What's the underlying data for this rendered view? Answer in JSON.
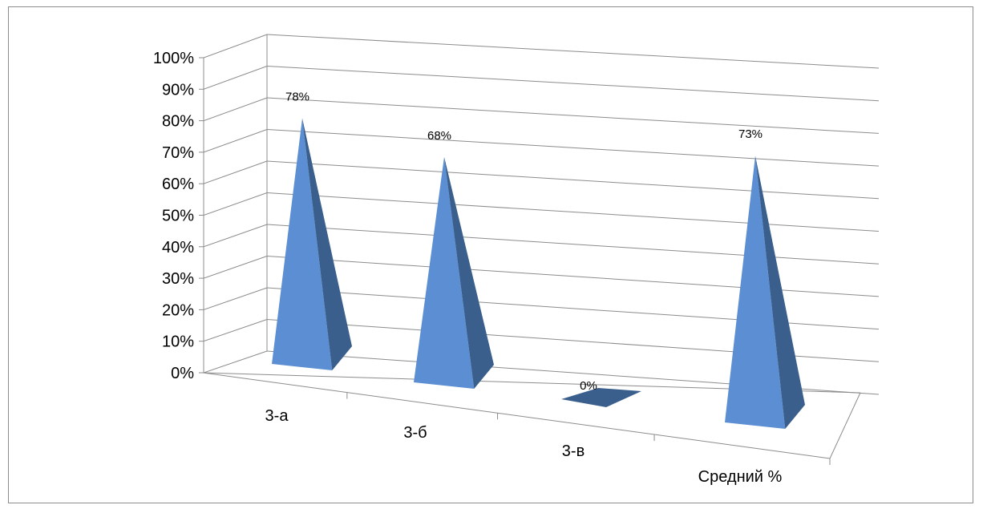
{
  "chart_data": {
    "type": "bar",
    "subtype": "3d-pyramid",
    "title": "",
    "xlabel": "",
    "ylabel": "",
    "categories": [
      "3-а",
      "3-б",
      "3-в",
      "Средний %"
    ],
    "values": [
      0.78,
      0.68,
      0.0,
      0.73
    ],
    "data_labels": [
      "78%",
      "68%",
      "0%",
      "73%"
    ],
    "ylim": [
      0,
      1
    ],
    "y_ticks": [
      "0%",
      "10%",
      "20%",
      "30%",
      "40%",
      "50%",
      "60%",
      "70%",
      "80%",
      "90%",
      "100%"
    ],
    "grid": true,
    "legend": "none",
    "colors": {
      "front": "#5b8ed2",
      "side": "#3a5f8c",
      "grid": "#8c8c8c"
    }
  }
}
